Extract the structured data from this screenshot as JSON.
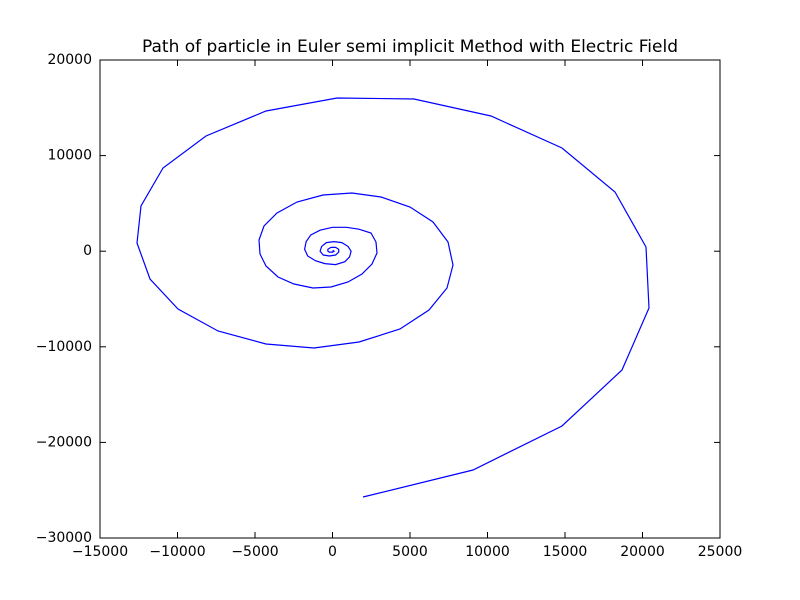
{
  "chart_data": {
    "type": "line",
    "title": "Path of particle in Euler semi implicit Method with Electric Field",
    "color": "#0000ff",
    "x": [
      1968,
      9065,
      14806,
      18677,
      20419,
      20226,
      18226,
      14806,
      10226,
      5258,
      290,
      -4290,
      -8161,
      -10935,
      -12355,
      -12613,
      -11774,
      -9968,
      -7387,
      -4290,
      -1194,
      1710,
      4355,
      6226,
      7387,
      7774,
      7452,
      6484,
      5000,
      3129,
      1258,
      -613,
      -2290,
      -3581,
      -4419,
      -4742,
      -4677,
      -4290,
      -3516,
      -2484,
      -1258,
      -97,
      1000,
      1903,
      2548,
      2871,
      2806,
      2484,
      1700,
      900,
      0,
      -800,
      -1400,
      -1700,
      -1800,
      -1600,
      -1100,
      -500,
      200,
      800,
      1100,
      1200,
      1000,
      600,
      100,
      -400,
      -700,
      -800,
      -600,
      -200,
      200,
      400,
      400,
      200,
      -100,
      -300,
      -300,
      -200,
      0,
      100,
      50,
      0
    ],
    "y": [
      -25711,
      -22887,
      -18285,
      -12427,
      -5941,
      439,
      6192,
      10795,
      14142,
      15921,
      16025,
      14665,
      12050,
      8703,
      4728,
      858,
      -2908,
      -6046,
      -8347,
      -9707,
      -10126,
      -9498,
      -8138,
      -6151,
      -3849,
      -1444,
      962,
      3054,
      4623,
      5669,
      6088,
      5879,
      5146,
      3996,
      2636,
      1172,
      -293,
      -1548,
      -2699,
      -3431,
      -3849,
      -3745,
      -3222,
      -2385,
      -1339,
      -188,
      962,
      1904,
      2300,
      2500,
      2500,
      2200,
      1700,
      1000,
      200,
      -500,
      -1000,
      -1300,
      -1400,
      -1100,
      -600,
      0,
      500,
      900,
      1000,
      900,
      500,
      0,
      -400,
      -500,
      -400,
      -100,
      200,
      400,
      400,
      200,
      0,
      -100,
      -100,
      0,
      50,
      0
    ],
    "xlim": [
      -15000,
      25000
    ],
    "ylim": [
      -30000,
      20000
    ],
    "xticks": [
      {
        "value": -15000,
        "label": "−15000"
      },
      {
        "value": -10000,
        "label": "−10000"
      },
      {
        "value": -5000,
        "label": "−5000"
      },
      0,
      5000,
      10000,
      15000,
      20000,
      25000
    ],
    "yticks": [
      {
        "value": -30000,
        "label": "−30000"
      },
      {
        "value": -20000,
        "label": "−20000"
      },
      {
        "value": -10000,
        "label": "−10000"
      },
      0,
      10000,
      20000
    ]
  }
}
